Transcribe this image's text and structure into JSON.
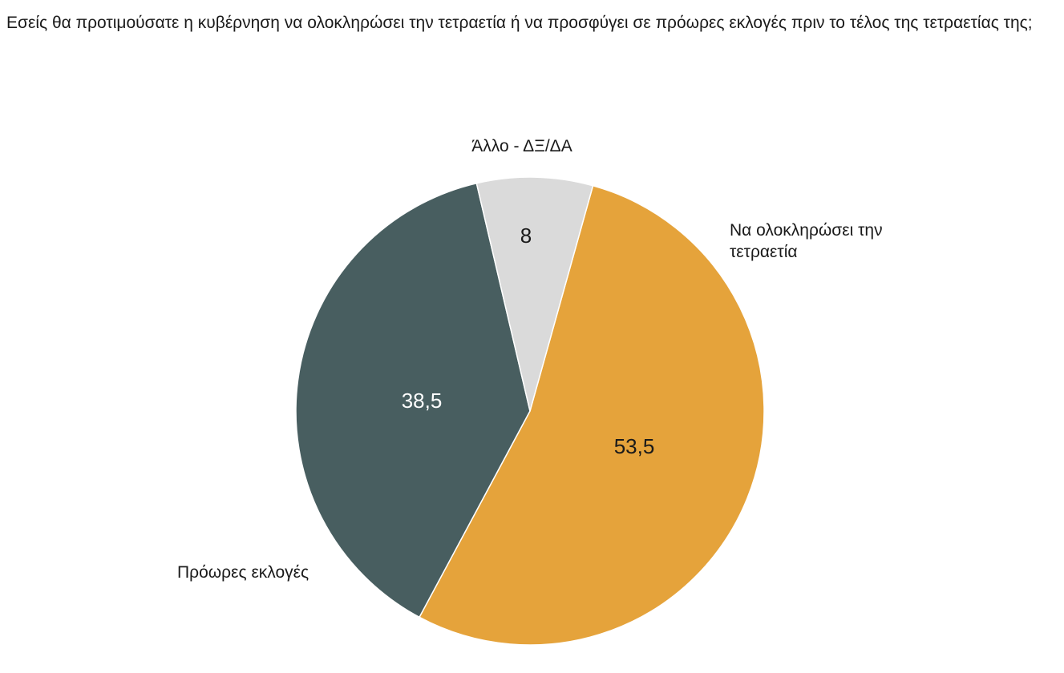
{
  "chart_data": {
    "type": "pie",
    "title": "Εσείς θα προτιμούσατε η κυβέρνηση να ολοκληρώσει την τετραετία ή να προσφύγει σε πρόωρες εκλογές πριν το τέλος της τετραετίας της;",
    "slices": [
      {
        "label": [
          "Να ολοκληρώσει την",
          "τετραετία"
        ],
        "value": 53.5,
        "value_label": "53,5",
        "color": "#e5a33b",
        "label_color": "#1a1a1a"
      },
      {
        "label": [
          "Πρόωρες εκλογές"
        ],
        "value": 38.5,
        "value_label": "38,5",
        "color": "#485e60",
        "label_color": "#ffffff"
      },
      {
        "label": [
          "Άλλο - ΔΞ/ΔΑ"
        ],
        "value": 8,
        "value_label": "8",
        "color": "#dadada",
        "label_color": "#1a1a1a"
      }
    ],
    "legend": "none"
  }
}
